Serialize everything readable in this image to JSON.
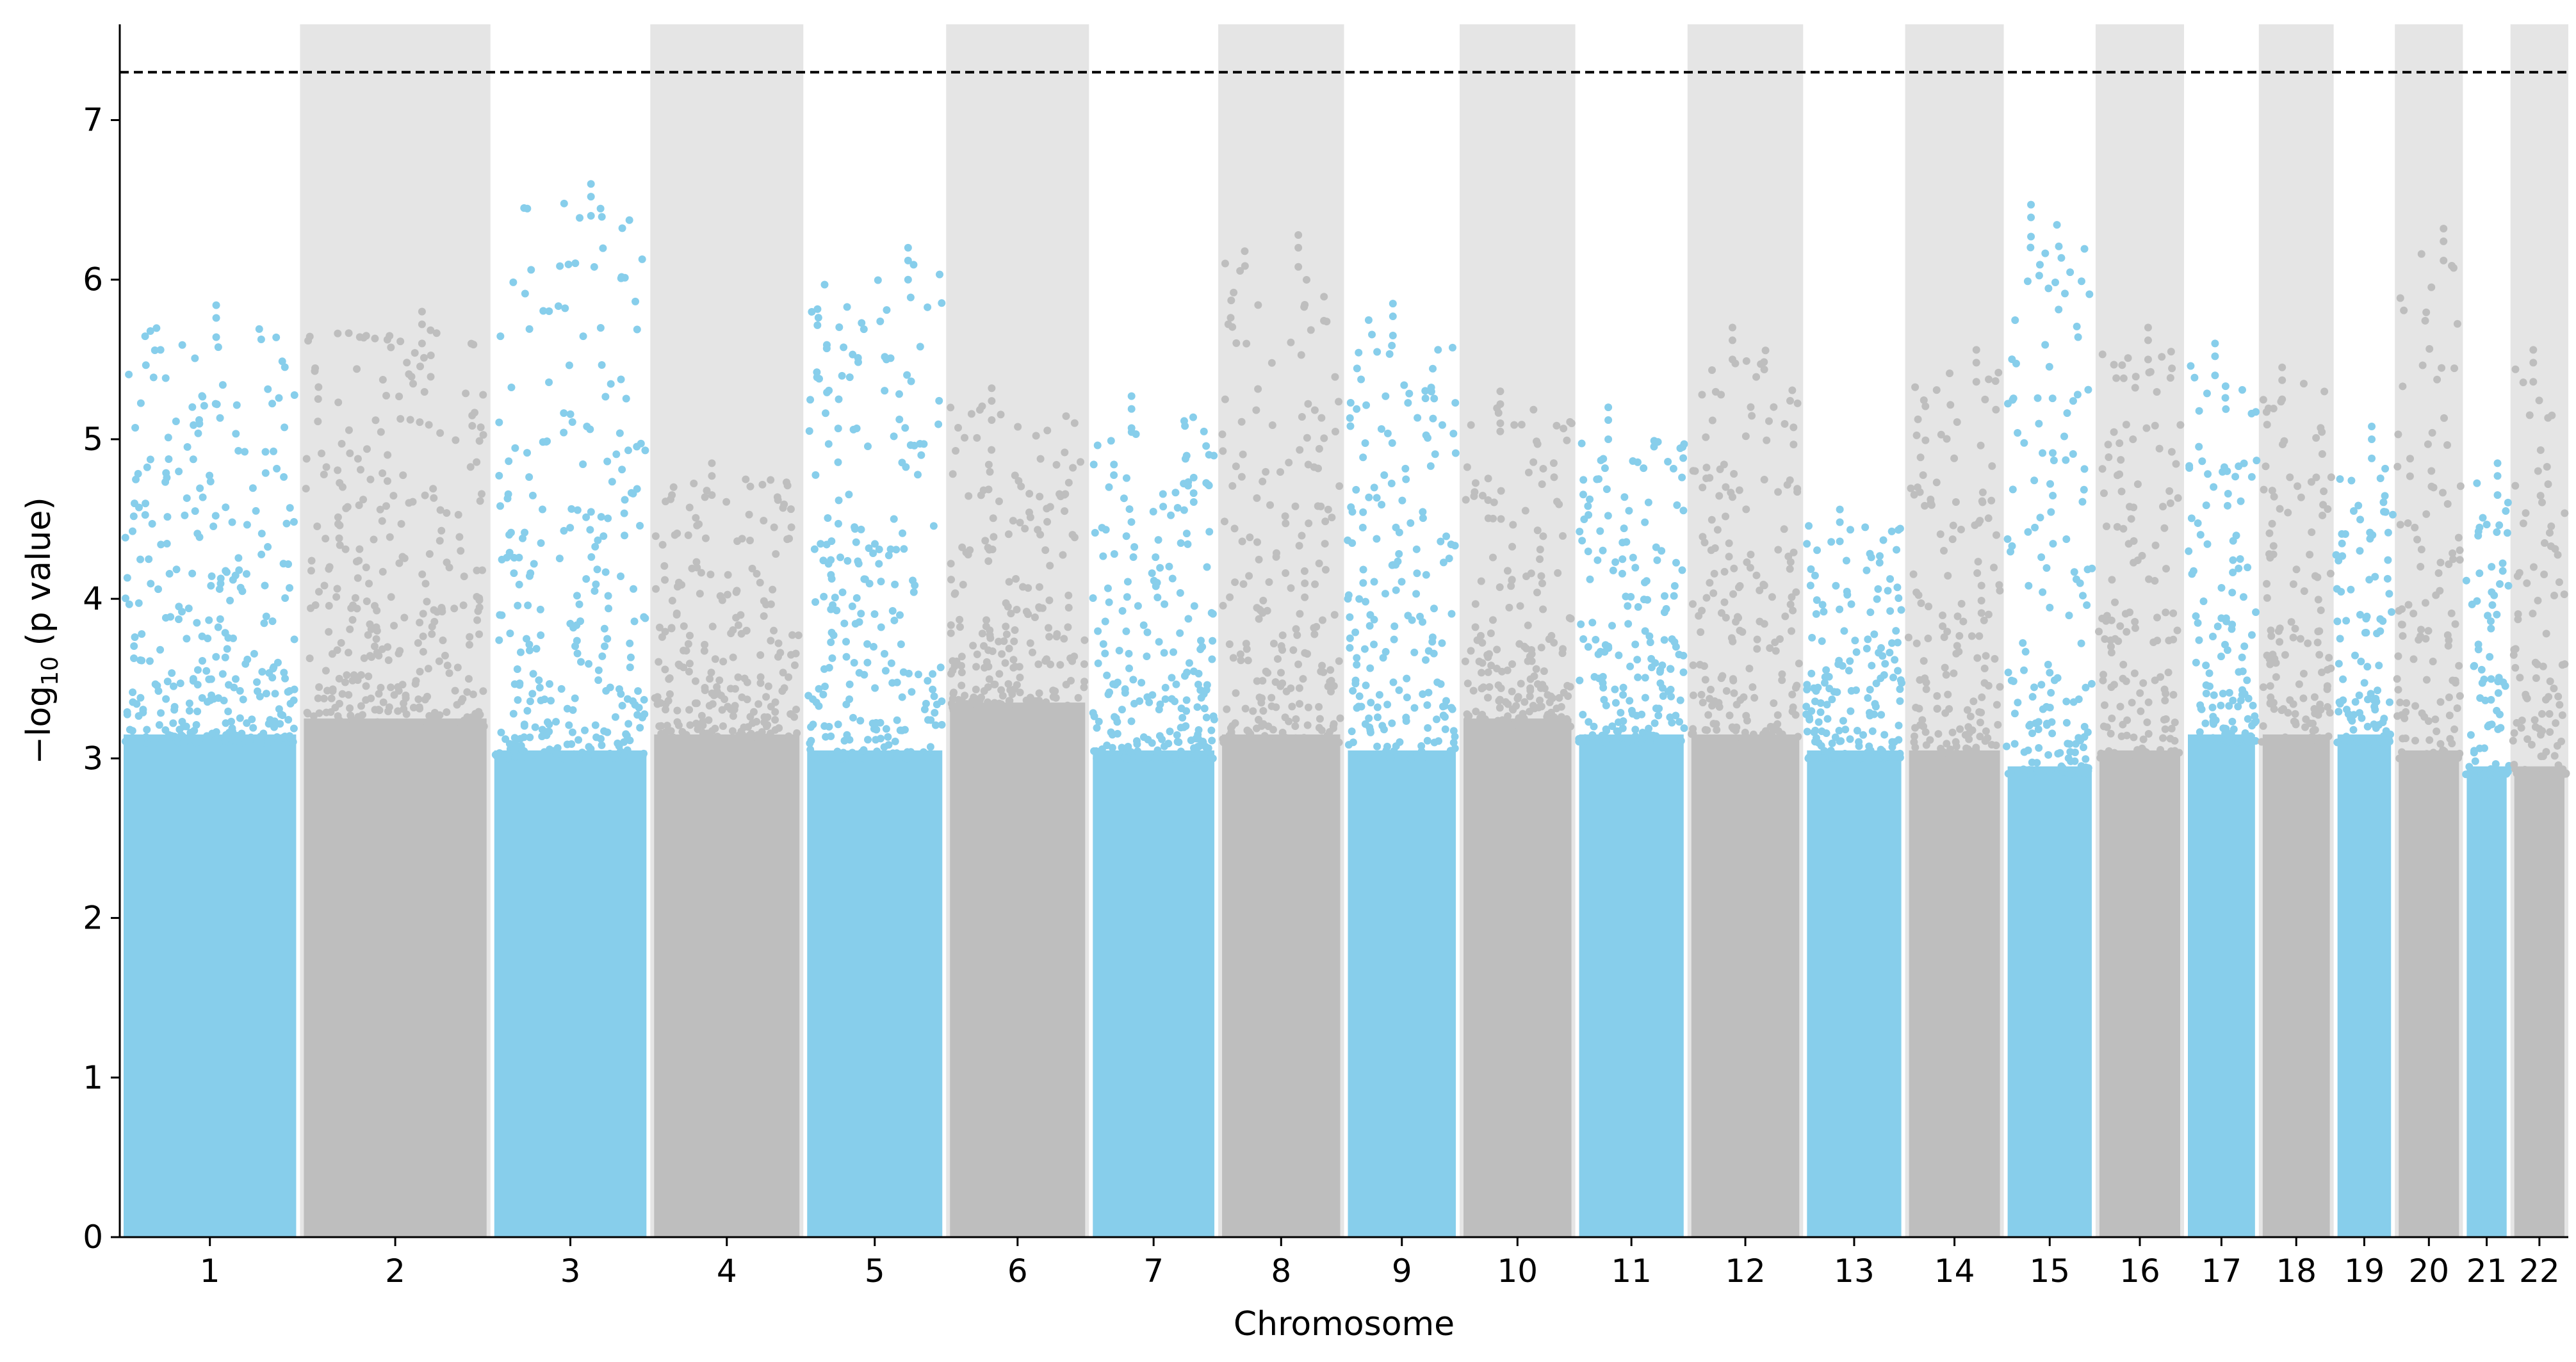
{
  "chart_data": {
    "type": "scatter",
    "xlabel": "Chromosome",
    "ylabel_main": "−log",
    "ylabel_sub": "10",
    "ylabel_tail": " (p value)",
    "ylim": [
      0,
      7.6
    ],
    "y_ticks": [
      "0",
      "1",
      "2",
      "3",
      "4",
      "5",
      "6",
      "7"
    ],
    "grid": false,
    "threshold": 7.3,
    "colors": {
      "odd": "#87CEEB",
      "even": "#BEBEBE",
      "band": "#E5E5E5",
      "threshold": "#000000"
    },
    "chromosomes": [
      {
        "label": "1",
        "start": 0.5,
        "end": 27.0,
        "peak": 5.84,
        "dense_top": 3.5
      },
      {
        "label": "2",
        "start": 27.0,
        "end": 55.0,
        "peak": 5.8,
        "dense_top": 3.6
      },
      {
        "label": "3",
        "start": 55.0,
        "end": 78.5,
        "peak": 6.6,
        "dense_top": 3.4
      },
      {
        "label": "4",
        "start": 78.5,
        "end": 101.0,
        "peak": 4.85,
        "dense_top": 3.5
      },
      {
        "label": "5",
        "start": 101.0,
        "end": 122.0,
        "peak": 6.2,
        "dense_top": 3.4
      },
      {
        "label": "6",
        "start": 122.0,
        "end": 143.0,
        "peak": 5.32,
        "dense_top": 3.7
      },
      {
        "label": "7",
        "start": 143.0,
        "end": 162.0,
        "peak": 5.27,
        "dense_top": 3.4
      },
      {
        "label": "8",
        "start": 162.0,
        "end": 180.5,
        "peak": 6.28,
        "dense_top": 3.5
      },
      {
        "label": "9",
        "start": 180.5,
        "end": 197.5,
        "peak": 5.85,
        "dense_top": 3.4
      },
      {
        "label": "10",
        "start": 197.5,
        "end": 214.5,
        "peak": 5.3,
        "dense_top": 3.6
      },
      {
        "label": "11",
        "start": 214.5,
        "end": 231.0,
        "peak": 5.2,
        "dense_top": 3.5
      },
      {
        "label": "12",
        "start": 231.0,
        "end": 248.0,
        "peak": 5.7,
        "dense_top": 3.5
      },
      {
        "label": "13",
        "start": 248.0,
        "end": 263.0,
        "peak": 4.56,
        "dense_top": 3.4
      },
      {
        "label": "14",
        "start": 263.0,
        "end": 277.5,
        "peak": 5.56,
        "dense_top": 3.4
      },
      {
        "label": "15",
        "start": 277.5,
        "end": 291.0,
        "peak": 6.47,
        "dense_top": 3.3
      },
      {
        "label": "16",
        "start": 291.0,
        "end": 304.0,
        "peak": 5.7,
        "dense_top": 3.4
      },
      {
        "label": "17",
        "start": 304.0,
        "end": 315.0,
        "peak": 5.6,
        "dense_top": 3.5
      },
      {
        "label": "18",
        "start": 315.0,
        "end": 326.0,
        "peak": 5.45,
        "dense_top": 3.5
      },
      {
        "label": "19",
        "start": 326.0,
        "end": 335.0,
        "peak": 5.08,
        "dense_top": 3.5
      },
      {
        "label": "20",
        "start": 335.0,
        "end": 345.0,
        "peak": 6.32,
        "dense_top": 3.4
      },
      {
        "label": "21",
        "start": 345.0,
        "end": 352.0,
        "peak": 4.85,
        "dense_top": 3.3
      },
      {
        "label": "22",
        "start": 352.0,
        "end": 360.5,
        "peak": 5.56,
        "dense_top": 3.3
      }
    ]
  }
}
